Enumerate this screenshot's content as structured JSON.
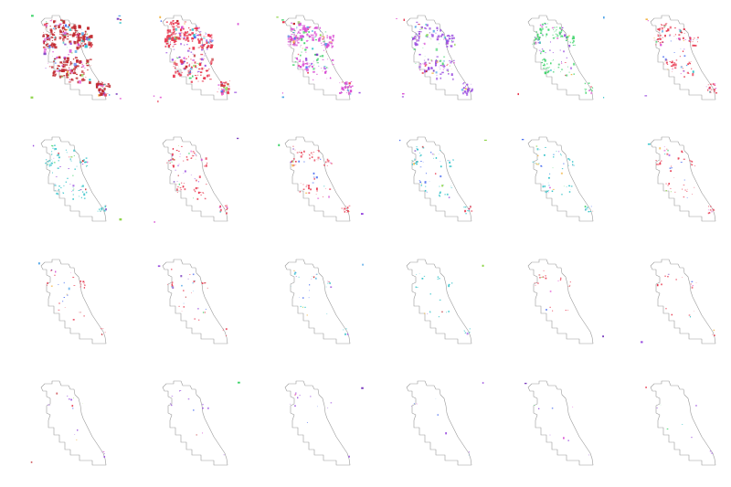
{
  "figure": {
    "rows": 4,
    "cols": 6,
    "background": "#ffffff",
    "outline_color": "#9a9a9a"
  },
  "palette": [
    "#e8384f",
    "#c0272d",
    "#d94fd4",
    "#9b4fe0",
    "#3fd46b",
    "#33c3c9",
    "#4c6ff0",
    "#f2b84d",
    "#8fd44a",
    "#7c3fbf",
    "#55a8e8",
    "#e86ad8"
  ],
  "panels": [
    {
      "density": 1.0,
      "dominant": "#d94fd4",
      "secondary": "#c0272d"
    },
    {
      "density": 0.85,
      "dominant": "#9b4fe0",
      "secondary": "#e8384f"
    },
    {
      "density": 0.7,
      "dominant": "#3fd46b",
      "secondary": "#d94fd4"
    },
    {
      "density": 0.55,
      "dominant": "#3fd46b",
      "secondary": "#9b4fe0"
    },
    {
      "density": 0.42,
      "dominant": "#9b4fe0",
      "secondary": "#3fd46b"
    },
    {
      "density": 0.36,
      "dominant": "#4c6ff0",
      "secondary": "#e8384f"
    },
    {
      "density": 0.28,
      "dominant": "#9b4fe0",
      "secondary": "#33c3c9"
    },
    {
      "density": 0.25,
      "dominant": "#9b4fe0",
      "secondary": "#e8384f"
    },
    {
      "density": 0.22,
      "dominant": "#4c6ff0",
      "secondary": "#e8384f"
    },
    {
      "density": 0.19,
      "dominant": "#4c6ff0",
      "secondary": "#33c3c9"
    },
    {
      "density": 0.16,
      "dominant": "#4c6ff0",
      "secondary": "#33c3c9"
    },
    {
      "density": 0.14,
      "dominant": "#4c6ff0",
      "secondary": "#e8384f"
    },
    {
      "density": 0.1,
      "dominant": "#4c6ff0",
      "secondary": "#e8384f"
    },
    {
      "density": 0.09,
      "dominant": "#55a8e8",
      "secondary": "#e8384f"
    },
    {
      "density": 0.08,
      "dominant": "#4c6ff0",
      "secondary": "#33c3c9"
    },
    {
      "density": 0.07,
      "dominant": "#4c6ff0",
      "secondary": "#33c3c9"
    },
    {
      "density": 0.06,
      "dominant": "#4c6ff0",
      "secondary": "#e8384f"
    },
    {
      "density": 0.05,
      "dominant": "#55a8e8",
      "secondary": "#e8384f"
    },
    {
      "density": 0.04,
      "dominant": "#4c6ff0",
      "secondary": "#9b4fe0"
    },
    {
      "density": 0.03,
      "dominant": "#4c6ff0",
      "secondary": "#9b4fe0"
    },
    {
      "density": 0.03,
      "dominant": "#4c6ff0",
      "secondary": "#9b4fe0"
    },
    {
      "density": 0.02,
      "dominant": "#4c6ff0",
      "secondary": "#9b4fe0"
    },
    {
      "density": 0.02,
      "dominant": "#4c6ff0",
      "secondary": "#9b4fe0"
    },
    {
      "density": 0.02,
      "dominant": "#4c6ff0",
      "secondary": "#9b4fe0"
    }
  ]
}
